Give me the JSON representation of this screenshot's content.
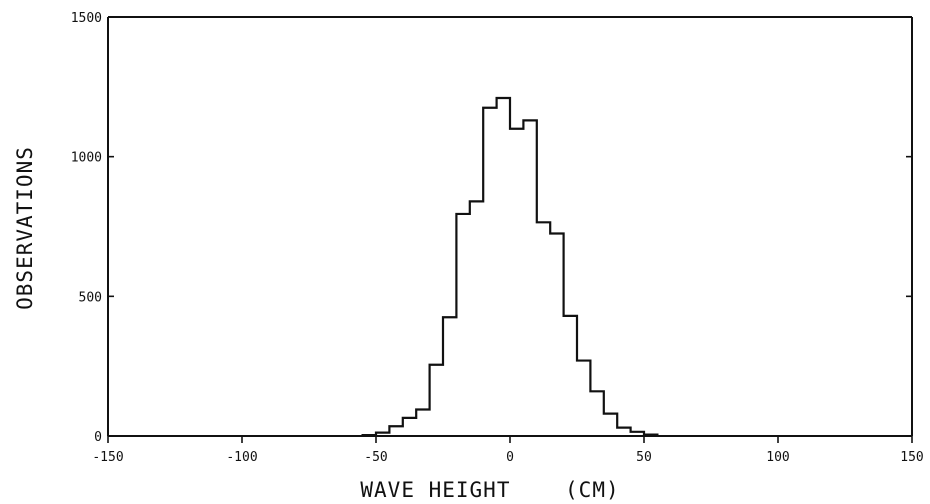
{
  "chart_data": {
    "type": "bar",
    "title": "",
    "xlabel": "WAVE HEIGHT    (CM)",
    "ylabel": "OBSERVATIONS",
    "xlim": [
      -150,
      150
    ],
    "ylim": [
      0,
      1500
    ],
    "x_ticks": [
      -150,
      -100,
      -50,
      0,
      50,
      100,
      150
    ],
    "x_tick_labels": [
      "-150",
      "-100",
      "-50",
      "0",
      "50",
      "100",
      "150"
    ],
    "y_ticks": [
      0,
      500,
      1000,
      1500
    ],
    "y_tick_labels": [
      "0",
      "500",
      "1000",
      "1500"
    ],
    "grid": false,
    "legend": "none",
    "bin_width": 5,
    "bin_edges": [
      -55,
      -50,
      -45,
      -40,
      -35,
      -30,
      -25,
      -20,
      -15,
      -10,
      -5,
      0,
      5,
      10,
      15,
      20,
      25,
      30,
      35,
      40,
      45,
      50,
      55
    ],
    "values": [
      3,
      12,
      35,
      65,
      95,
      255,
      425,
      795,
      840,
      1175,
      1210,
      1100,
      1130,
      765,
      725,
      430,
      270,
      160,
      80,
      30,
      15,
      5
    ]
  }
}
